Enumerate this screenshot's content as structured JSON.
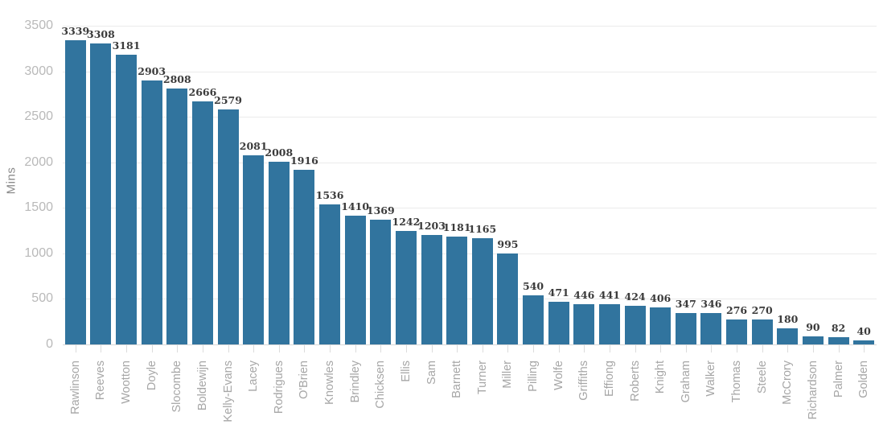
{
  "chart_data": {
    "type": "bar",
    "title": "",
    "xlabel": "",
    "ylabel": "Mins",
    "ylim": [
      0,
      3500
    ],
    "yticks": [
      0,
      500,
      1000,
      1500,
      2000,
      2500,
      3000,
      3500
    ],
    "grid": "horizontal",
    "legend": "none",
    "value_labels": "shown above each bar",
    "categories": [
      "Rawlinson",
      "Reeves",
      "Wootton",
      "Doyle",
      "Slocombe",
      "Boldewijn",
      "Kelly-Evans",
      "Lacey",
      "Rodrigues",
      "O'Brien",
      "Knowles",
      "Brindley",
      "Chicksen",
      "Ellis",
      "Sam",
      "Barnett",
      "Turner",
      "Miller",
      "Pilling",
      "Wolfe",
      "Griffiths",
      "Effiong",
      "Roberts",
      "Knight",
      "Graham",
      "Walker",
      "Thomas",
      "Steele",
      "McCrory",
      "Richardson",
      "Palmer",
      "Golden"
    ],
    "values": [
      3339,
      3308,
      3181,
      2903,
      2808,
      2666,
      2579,
      2081,
      2008,
      1916,
      1536,
      1410,
      1369,
      1242,
      1203,
      1181,
      1165,
      995,
      540,
      471,
      446,
      441,
      424,
      406,
      347,
      346,
      276,
      270,
      180,
      90,
      82,
      40
    ]
  },
  "colors": {
    "bar": "#31749e",
    "value_label": "#3b3b3b",
    "ytick_label": "#b9b9b9",
    "category_label": "#a6a6a6",
    "axis_title": "#8a8a8a",
    "gridline": "#ebebeb",
    "background": "#ffffff"
  }
}
